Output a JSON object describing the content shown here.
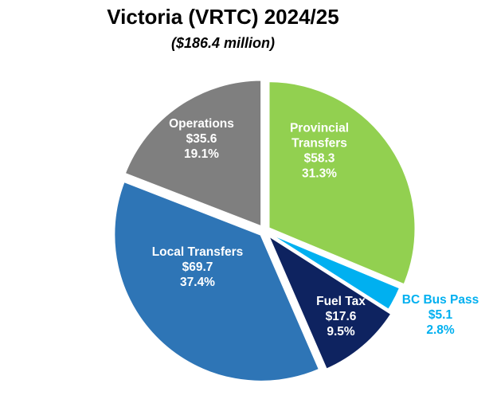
{
  "chart_data": {
    "type": "pie",
    "title": "Victoria (VRTC) 2024/25",
    "subtitle": "($186.4 million)",
    "slices": [
      {
        "name": "Provincial Transfers",
        "label_lines": [
          "Provincial",
          "Transfers"
        ],
        "value_label": "$58.3",
        "pct_label": "31.3%",
        "value": 58.3,
        "percent": 31.3,
        "color": "#92D050",
        "text_color": "#ffffff",
        "exploded": true
      },
      {
        "name": "BC Bus Pass",
        "label_lines": [
          "BC Bus Pass"
        ],
        "value_label": "$5.1",
        "pct_label": "2.8%",
        "value": 5.1,
        "percent": 2.8,
        "color": "#00B0F0",
        "text_color": "#00B0F0",
        "exploded": false
      },
      {
        "name": "Fuel Tax",
        "label_lines": [
          "Fuel Tax"
        ],
        "value_label": "$17.6",
        "pct_label": "9.5%",
        "value": 17.6,
        "percent": 9.5,
        "color": "#0E2360",
        "text_color": "#ffffff",
        "exploded": true
      },
      {
        "name": "Local Transfers",
        "label_lines": [
          "Local Transfers"
        ],
        "value_label": "$69.7",
        "pct_label": "37.4%",
        "value": 69.7,
        "percent": 37.4,
        "color": "#2E75B6",
        "text_color": "#ffffff",
        "exploded": true
      },
      {
        "name": "Operations",
        "label_lines": [
          "Operations"
        ],
        "value_label": "$35.6",
        "pct_label": "19.1%",
        "value": 35.6,
        "percent": 19.1,
        "color": "#7F7F7F",
        "text_color": "#ffffff",
        "exploded": true
      }
    ]
  }
}
